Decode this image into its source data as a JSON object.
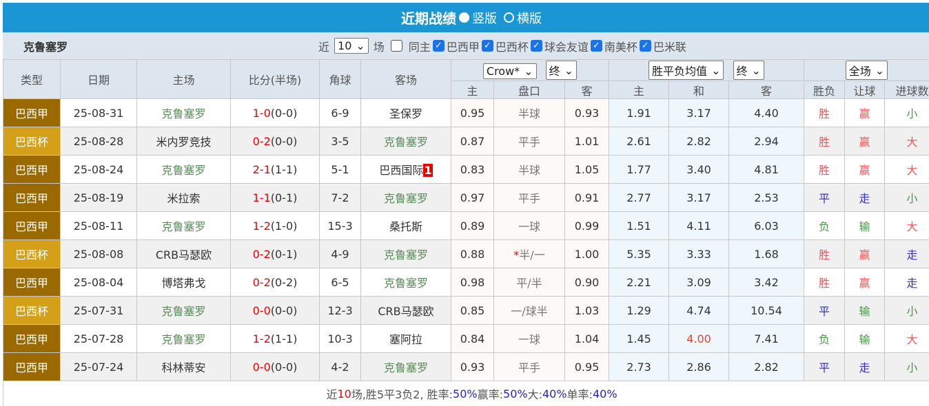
{
  "header": {
    "title": "近期战绩",
    "opt_vertical": "竖版",
    "opt_horizontal": "横版"
  },
  "filter": {
    "team": "克鲁塞罗",
    "near": "近",
    "count": "10",
    "unit": "场",
    "same_home": "同主",
    "leagues": [
      "巴西甲",
      "巴西杯",
      "球会友谊",
      "南美杯",
      "巴米联"
    ]
  },
  "columns": {
    "type": "类型",
    "date": "日期",
    "home": "主场",
    "score": "比分(半场)",
    "corner": "角球",
    "away": "客场",
    "company": "Crow*",
    "hc_stage": "终",
    "ox_type": "胜平负均值",
    "ox_stage": "终",
    "period": "全场",
    "hc_home": "主",
    "hc_line": "盘口",
    "hc_away": "客",
    "ox_home": "主",
    "ox_draw": "和",
    "ox_away": "客",
    "wl": "胜负",
    "ah": "让球",
    "ou": "进球数"
  },
  "colors": {
    "title_bar": "#1a96d4",
    "league_a": "#9a6a00",
    "league_b": "#d4a017",
    "win": "#f55555",
    "draw": "#3333cc",
    "lose": "#449944"
  },
  "rows": [
    {
      "type": "巴西甲",
      "date": "25-08-31",
      "home": "克鲁塞罗",
      "score": "1-0",
      "half": "(0-0)",
      "corner": "6-9",
      "away": "圣保罗",
      "h1": "0.95",
      "line": "半球",
      "h2": "0.93",
      "o1": "1.91",
      "o2": "3.17",
      "o3": "4.40",
      "wl": "胜",
      "ah": "赢",
      "ou": "小"
    },
    {
      "type": "巴西杯",
      "date": "25-08-28",
      "home": "米内罗竞技",
      "score": "0-2",
      "half": "(0-0)",
      "corner": "3-5",
      "away": "克鲁塞罗",
      "h1": "0.87",
      "line": "平手",
      "h2": "1.01",
      "o1": "2.61",
      "o2": "2.82",
      "o3": "2.94",
      "wl": "胜",
      "ah": "赢",
      "ou": "大"
    },
    {
      "type": "巴西甲",
      "date": "25-08-24",
      "home": "克鲁塞罗",
      "score": "2-1",
      "half": "(1-1)",
      "corner": "5-1",
      "away": "巴西国际",
      "away_tag": "1",
      "h1": "0.83",
      "line": "半球",
      "h2": "1.05",
      "o1": "1.77",
      "o2": "3.40",
      "o3": "4.81",
      "wl": "胜",
      "ah": "赢",
      "ou": "大"
    },
    {
      "type": "巴西甲",
      "date": "25-08-19",
      "home": "米拉索",
      "score": "1-1",
      "half": "(0-1)",
      "corner": "7-2",
      "away": "克鲁塞罗",
      "h1": "0.97",
      "line": "平手",
      "h2": "0.91",
      "o1": "2.77",
      "o2": "3.17",
      "o3": "2.53",
      "wl": "平",
      "ah": "走",
      "ou": "小"
    },
    {
      "type": "巴西甲",
      "date": "25-08-11",
      "home": "克鲁塞罗",
      "score": "1-2",
      "half": "(1-0)",
      "corner": "15-3",
      "away": "桑托斯",
      "h1": "0.89",
      "line": "一球",
      "h2": "0.99",
      "o1": "1.51",
      "o2": "4.11",
      "o3": "6.03",
      "wl": "负",
      "ah": "输",
      "ou": "大"
    },
    {
      "type": "巴西杯",
      "date": "25-08-08",
      "home": "CRB马瑟欧",
      "score": "0-2",
      "half": "(0-1)",
      "corner": "4-9",
      "away": "克鲁塞罗",
      "h1": "0.88",
      "line_mark": "*",
      "line": "半/一",
      "h2": "1.00",
      "o1": "5.35",
      "o2": "3.33",
      "o3": "1.68",
      "wl": "胜",
      "ah": "赢",
      "ou": "走"
    },
    {
      "type": "巴西甲",
      "date": "25-08-04",
      "home": "博塔弗戈",
      "score": "0-2",
      "half": "(0-2)",
      "corner": "6-5",
      "away": "克鲁塞罗",
      "h1": "0.98",
      "line": "平/半",
      "h2": "0.90",
      "o1": "2.21",
      "o2": "3.09",
      "o3": "3.42",
      "wl": "胜",
      "ah": "赢",
      "ou": "走"
    },
    {
      "type": "巴西杯",
      "date": "25-07-31",
      "home": "克鲁塞罗",
      "score": "0-0",
      "half": "(0-0)",
      "corner": "12-3",
      "away": "CRB马瑟欧",
      "h1": "0.85",
      "line": "一/球半",
      "h2": "1.03",
      "o1": "1.29",
      "o2": "4.74",
      "o3": "10.54",
      "wl": "平",
      "ah": "输",
      "ou": "小"
    },
    {
      "type": "巴西甲",
      "date": "25-07-28",
      "home": "克鲁塞罗",
      "score": "1-2",
      "half": "(1-1)",
      "corner": "10-3",
      "away": "塞阿拉",
      "h1": "0.84",
      "line": "一球",
      "h2": "1.04",
      "o1": "1.45",
      "o2": "4.00",
      "o2_hl": true,
      "o3": "7.41",
      "wl": "负",
      "ah": "输",
      "ou": "大"
    },
    {
      "type": "巴西甲",
      "date": "25-07-24",
      "home": "科林蒂安",
      "score": "0-0",
      "half": "(0-0)",
      "corner": "4-2",
      "away": "克鲁塞罗",
      "h1": "0.93",
      "line": "平手",
      "h2": "0.95",
      "o1": "2.73",
      "o2": "2.86",
      "o3": "2.82",
      "wl": "平",
      "ah": "走",
      "ou": "小"
    }
  ],
  "summary": {
    "p1": "近",
    "n": "10",
    "p2": "场,胜5平3负2, 胜率:",
    "win_rate": "50%",
    "p3": " 赢率:",
    "ah_rate": "50%",
    "p4": " 大:",
    "over_rate": "40%",
    "p5": " 单率:",
    "odd_rate": "40%"
  }
}
